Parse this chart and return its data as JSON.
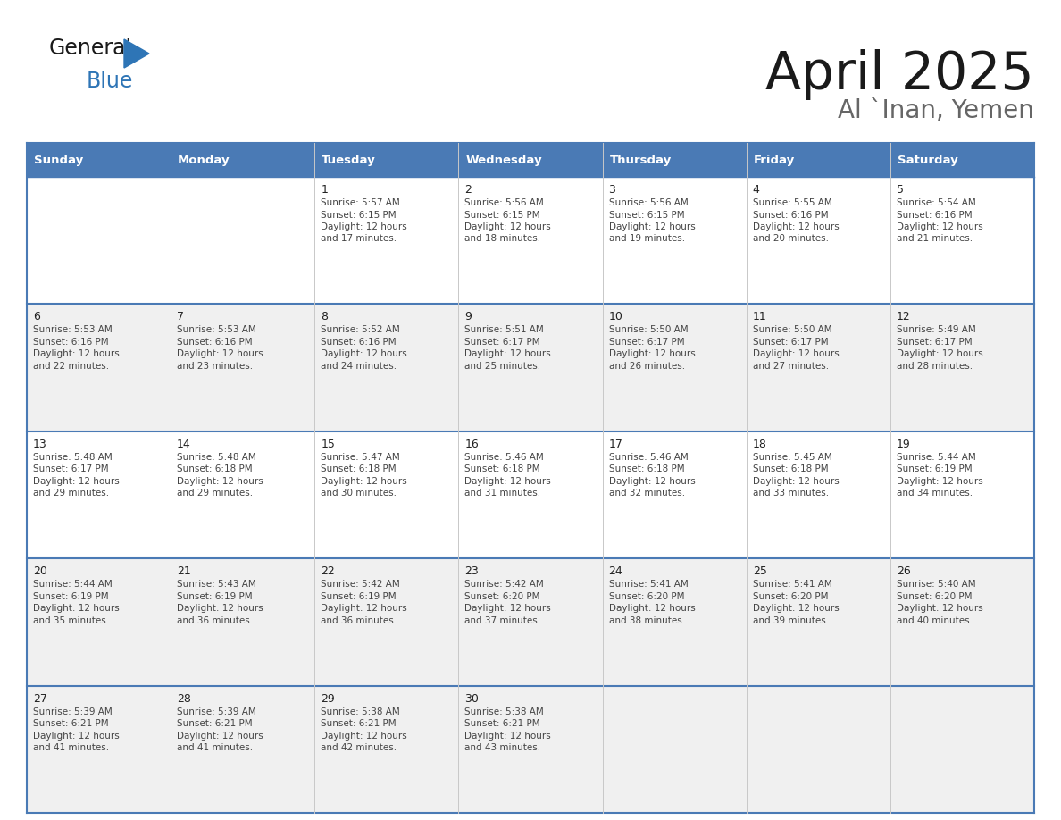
{
  "title": "April 2025",
  "subtitle": "Al `Inan, Yemen",
  "days_of_week": [
    "Sunday",
    "Monday",
    "Tuesday",
    "Wednesday",
    "Thursday",
    "Friday",
    "Saturday"
  ],
  "header_bg": "#4a7ab5",
  "header_text": "#ffffff",
  "row_bg": [
    "#ffffff",
    "#f0f0f0",
    "#ffffff",
    "#f0f0f0",
    "#f0f0f0"
  ],
  "cell_text": "#333333",
  "cell_text2": "#555555",
  "border_color": "#4a7ab5",
  "border_color_light": "#c0c8d8",
  "logo_general_color": "#1a1a1a",
  "logo_blue_color": "#2e75b6",
  "calendar_data": [
    [
      null,
      null,
      {
        "day": 1,
        "sunrise": "5:57 AM",
        "sunset": "6:15 PM",
        "daylight_hours": "12 hours",
        "daylight_min": "and 17 minutes."
      },
      {
        "day": 2,
        "sunrise": "5:56 AM",
        "sunset": "6:15 PM",
        "daylight_hours": "12 hours",
        "daylight_min": "and 18 minutes."
      },
      {
        "day": 3,
        "sunrise": "5:56 AM",
        "sunset": "6:15 PM",
        "daylight_hours": "12 hours",
        "daylight_min": "and 19 minutes."
      },
      {
        "day": 4,
        "sunrise": "5:55 AM",
        "sunset": "6:16 PM",
        "daylight_hours": "12 hours",
        "daylight_min": "and 20 minutes."
      },
      {
        "day": 5,
        "sunrise": "5:54 AM",
        "sunset": "6:16 PM",
        "daylight_hours": "12 hours",
        "daylight_min": "and 21 minutes."
      }
    ],
    [
      {
        "day": 6,
        "sunrise": "5:53 AM",
        "sunset": "6:16 PM",
        "daylight_hours": "12 hours",
        "daylight_min": "and 22 minutes."
      },
      {
        "day": 7,
        "sunrise": "5:53 AM",
        "sunset": "6:16 PM",
        "daylight_hours": "12 hours",
        "daylight_min": "and 23 minutes."
      },
      {
        "day": 8,
        "sunrise": "5:52 AM",
        "sunset": "6:16 PM",
        "daylight_hours": "12 hours",
        "daylight_min": "and 24 minutes."
      },
      {
        "day": 9,
        "sunrise": "5:51 AM",
        "sunset": "6:17 PM",
        "daylight_hours": "12 hours",
        "daylight_min": "and 25 minutes."
      },
      {
        "day": 10,
        "sunrise": "5:50 AM",
        "sunset": "6:17 PM",
        "daylight_hours": "12 hours",
        "daylight_min": "and 26 minutes."
      },
      {
        "day": 11,
        "sunrise": "5:50 AM",
        "sunset": "6:17 PM",
        "daylight_hours": "12 hours",
        "daylight_min": "and 27 minutes."
      },
      {
        "day": 12,
        "sunrise": "5:49 AM",
        "sunset": "6:17 PM",
        "daylight_hours": "12 hours",
        "daylight_min": "and 28 minutes."
      }
    ],
    [
      {
        "day": 13,
        "sunrise": "5:48 AM",
        "sunset": "6:17 PM",
        "daylight_hours": "12 hours",
        "daylight_min": "and 29 minutes."
      },
      {
        "day": 14,
        "sunrise": "5:48 AM",
        "sunset": "6:18 PM",
        "daylight_hours": "12 hours",
        "daylight_min": "and 29 minutes."
      },
      {
        "day": 15,
        "sunrise": "5:47 AM",
        "sunset": "6:18 PM",
        "daylight_hours": "12 hours",
        "daylight_min": "and 30 minutes."
      },
      {
        "day": 16,
        "sunrise": "5:46 AM",
        "sunset": "6:18 PM",
        "daylight_hours": "12 hours",
        "daylight_min": "and 31 minutes."
      },
      {
        "day": 17,
        "sunrise": "5:46 AM",
        "sunset": "6:18 PM",
        "daylight_hours": "12 hours",
        "daylight_min": "and 32 minutes."
      },
      {
        "day": 18,
        "sunrise": "5:45 AM",
        "sunset": "6:18 PM",
        "daylight_hours": "12 hours",
        "daylight_min": "and 33 minutes."
      },
      {
        "day": 19,
        "sunrise": "5:44 AM",
        "sunset": "6:19 PM",
        "daylight_hours": "12 hours",
        "daylight_min": "and 34 minutes."
      }
    ],
    [
      {
        "day": 20,
        "sunrise": "5:44 AM",
        "sunset": "6:19 PM",
        "daylight_hours": "12 hours",
        "daylight_min": "and 35 minutes."
      },
      {
        "day": 21,
        "sunrise": "5:43 AM",
        "sunset": "6:19 PM",
        "daylight_hours": "12 hours",
        "daylight_min": "and 36 minutes."
      },
      {
        "day": 22,
        "sunrise": "5:42 AM",
        "sunset": "6:19 PM",
        "daylight_hours": "12 hours",
        "daylight_min": "and 36 minutes."
      },
      {
        "day": 23,
        "sunrise": "5:42 AM",
        "sunset": "6:20 PM",
        "daylight_hours": "12 hours",
        "daylight_min": "and 37 minutes."
      },
      {
        "day": 24,
        "sunrise": "5:41 AM",
        "sunset": "6:20 PM",
        "daylight_hours": "12 hours",
        "daylight_min": "and 38 minutes."
      },
      {
        "day": 25,
        "sunrise": "5:41 AM",
        "sunset": "6:20 PM",
        "daylight_hours": "12 hours",
        "daylight_min": "and 39 minutes."
      },
      {
        "day": 26,
        "sunrise": "5:40 AM",
        "sunset": "6:20 PM",
        "daylight_hours": "12 hours",
        "daylight_min": "and 40 minutes."
      }
    ],
    [
      {
        "day": 27,
        "sunrise": "5:39 AM",
        "sunset": "6:21 PM",
        "daylight_hours": "12 hours",
        "daylight_min": "and 41 minutes."
      },
      {
        "day": 28,
        "sunrise": "5:39 AM",
        "sunset": "6:21 PM",
        "daylight_hours": "12 hours",
        "daylight_min": "and 41 minutes."
      },
      {
        "day": 29,
        "sunrise": "5:38 AM",
        "sunset": "6:21 PM",
        "daylight_hours": "12 hours",
        "daylight_min": "and 42 minutes."
      },
      {
        "day": 30,
        "sunrise": "5:38 AM",
        "sunset": "6:21 PM",
        "daylight_hours": "12 hours",
        "daylight_min": "and 43 minutes."
      },
      null,
      null,
      null
    ]
  ]
}
